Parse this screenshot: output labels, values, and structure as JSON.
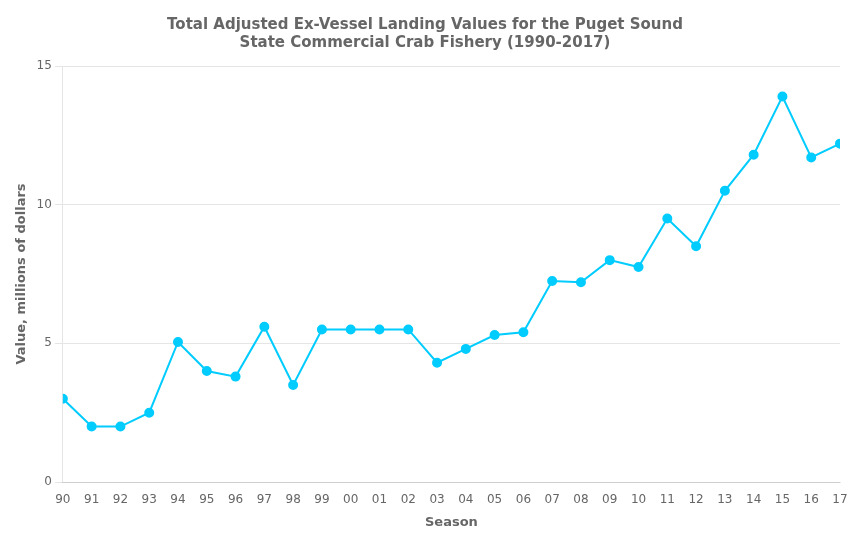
{
  "chart_data": {
    "type": "line",
    "title": "Total Adjusted Ex-Vessel Landing Values for the Puget Sound\nState Commercial Crab Fishery (1990-2017)",
    "xlabel": "Season",
    "ylabel": "Value, millions of dollars",
    "categories": [
      "90",
      "91",
      "92",
      "93",
      "94",
      "95",
      "96",
      "97",
      "98",
      "99",
      "00",
      "01",
      "02",
      "03",
      "04",
      "05",
      "06",
      "07",
      "08",
      "09",
      "10",
      "11",
      "12",
      "13",
      "14",
      "15",
      "16",
      "17"
    ],
    "values": [
      3.0,
      2.0,
      2.0,
      2.5,
      5.05,
      4.0,
      3.8,
      5.6,
      3.5,
      5.5,
      5.5,
      5.5,
      5.5,
      4.3,
      4.8,
      5.3,
      5.4,
      7.25,
      7.2,
      8.0,
      7.75,
      9.5,
      8.5,
      10.5,
      11.8,
      13.9,
      11.7,
      12.2
    ],
    "color": "#00CCFF",
    "marker": "circle",
    "ylim": [
      0,
      15
    ],
    "yticks": [
      0,
      5,
      10,
      15
    ],
    "grid": "y"
  }
}
